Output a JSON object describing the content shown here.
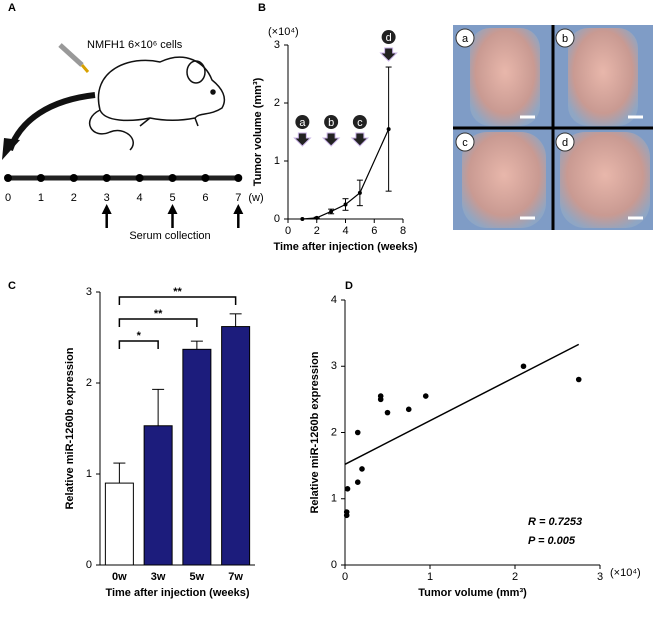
{
  "panel_labels": [
    "A",
    "B",
    "C",
    "D"
  ],
  "timeline": {
    "injection": "NMFH1 6×10⁶ cells",
    "ticks": [
      0,
      1,
      2,
      3,
      4,
      5,
      6,
      7
    ],
    "unit": "(w)",
    "arrows": [
      3,
      5,
      7
    ],
    "arrow_label": "Serum collection"
  },
  "photos": [
    "a",
    "b",
    "c",
    "d"
  ],
  "chart_data": [
    {
      "type": "errorline",
      "x": [
        1,
        2,
        3,
        4,
        5,
        7
      ],
      "values": [
        0,
        0.02,
        0.13,
        0.25,
        0.45,
        1.55
      ],
      "errors": [
        0,
        0.01,
        0.04,
        0.1,
        0.22,
        1.07
      ],
      "color": "#000000",
      "xlim": [
        0,
        8
      ],
      "xticks": [
        0,
        2,
        4,
        6,
        8
      ],
      "ylim": [
        0,
        3
      ],
      "yticks": [
        0,
        1,
        2,
        3
      ],
      "y_unit": "(×10⁴)",
      "ylabel": "Tumor volume (mm³)",
      "xlabel": "Time after injection (weeks)",
      "markers": [
        {
          "label": "a",
          "x": 1
        },
        {
          "label": "b",
          "x": 3
        },
        {
          "label": "c",
          "x": 5
        },
        {
          "label": "d",
          "x": 7
        }
      ]
    },
    {
      "type": "bar",
      "categories": [
        "0w",
        "3w",
        "5w",
        "7w"
      ],
      "values": [
        0.9,
        1.53,
        2.37,
        2.62
      ],
      "errors": [
        0.22,
        0.4,
        0.09,
        0.14
      ],
      "colors": [
        "#ffffff",
        "#1c1c7c",
        "#1c1c7c",
        "#1c1c7c"
      ],
      "ylim": [
        0,
        3
      ],
      "yticks": [
        0,
        1,
        2,
        3
      ],
      "ylabel": "Relative miR-1260b expression",
      "xlabel": "Time after injection (weeks)",
      "brackets": [
        {
          "label": "*",
          "from": "0w",
          "to": "3w"
        },
        {
          "label": "**",
          "from": "0w",
          "to": "5w"
        },
        {
          "label": "**",
          "from": "0w",
          "to": "7w"
        }
      ]
    },
    {
      "type": "scatter",
      "x": [
        0.02,
        0.02,
        0.03,
        0.15,
        0.15,
        0.2,
        0.42,
        0.42,
        0.5,
        0.75,
        0.95,
        2.1,
        2.75
      ],
      "values": [
        0.8,
        0.75,
        1.15,
        1.25,
        2.0,
        1.45,
        2.5,
        2.55,
        2.3,
        2.35,
        2.55,
        3.0,
        2.8
      ],
      "color": "#000000",
      "fit": {
        "x": [
          0,
          2.75
        ],
        "values": [
          1.52,
          3.33
        ]
      },
      "xlim": [
        0,
        3
      ],
      "xticks": [
        0,
        1,
        2,
        3
      ],
      "ylim": [
        0,
        4
      ],
      "yticks": [
        0,
        1,
        2,
        3,
        4
      ],
      "x_unit": "(×10⁴)",
      "ylabel": "Relative miR-1260b expression",
      "xlabel": "Tumor volume (mm³)",
      "stats": [
        "R = 0.7253",
        "P = 0.005"
      ]
    }
  ]
}
